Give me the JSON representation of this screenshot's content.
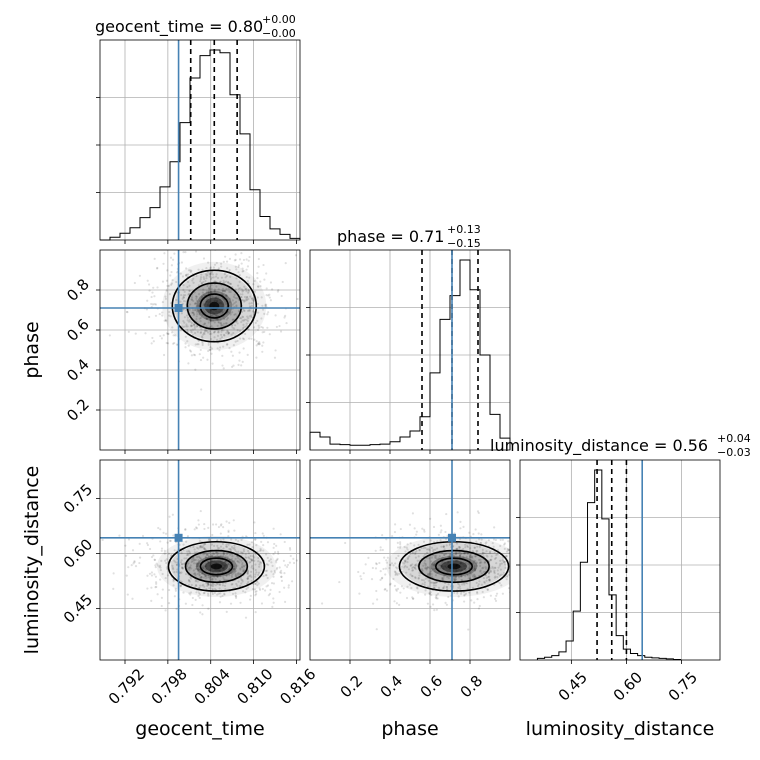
{
  "chart_data": {
    "type": "corner",
    "parameters": [
      "geocent_time",
      "phase",
      "luminosity_distance"
    ],
    "truths": {
      "geocent_time": 0.7995,
      "phase": 0.71,
      "luminosity_distance": 0.643
    },
    "truth_color": "#4682b4",
    "axes": {
      "geocent_time": {
        "range": [
          0.7885,
          0.8165
        ],
        "ticks": [
          0.792,
          0.798,
          0.804,
          0.81,
          0.816
        ],
        "tick_labels": [
          "0.792",
          "0.798",
          "0.804",
          "0.810",
          "0.816"
        ]
      },
      "phase": {
        "range": [
          0.0,
          1.0
        ],
        "ticks": [
          0.2,
          0.4,
          0.6,
          0.8
        ],
        "tick_labels": [
          "0.2",
          "0.4",
          "0.6",
          "0.8"
        ]
      },
      "luminosity_distance": {
        "range": [
          0.31,
          0.855
        ],
        "ticks": [
          0.45,
          0.6,
          0.75
        ],
        "tick_labels": [
          "0.45",
          "0.60",
          "0.75"
        ]
      }
    },
    "titles": {
      "geocent_time": {
        "main": "geocent_time = 0.80",
        "plus": "+0.00",
        "minus": "−0.00"
      },
      "phase": {
        "main": "phase = 0.71",
        "plus": "+0.13",
        "minus": "−0.15"
      },
      "luminosity_distance": {
        "main": "luminosity_distance = 0.56",
        "plus": "+0.04",
        "minus": "−0.03"
      }
    },
    "quantiles": {
      "geocent_time": [
        0.8012,
        0.8045,
        0.8077
      ],
      "phase": [
        0.56,
        0.71,
        0.84
      ],
      "luminosity_distance": [
        0.52,
        0.56,
        0.6
      ]
    },
    "histograms": {
      "geocent_time": {
        "edges_start": 0.7885,
        "bin_width": 0.0014,
        "counts": [
          0.0,
          0.5,
          1.2,
          2.2,
          4.0,
          5.8,
          9.5,
          14.0,
          21.0,
          29.0,
          33.0,
          34.0,
          33.5,
          26.0,
          19.0,
          9.0,
          4.2,
          2.0,
          1.0,
          0.3
        ]
      },
      "phase": {
        "edges_start": 0.0,
        "bin_width": 0.05,
        "counts": [
          3.0,
          2.2,
          1.0,
          0.9,
          0.8,
          0.8,
          0.9,
          1.0,
          1.4,
          2.2,
          3.2,
          5.6,
          13.0,
          22.0,
          26.0,
          32.0,
          27.0,
          16.0,
          6.0,
          2.0
        ]
      },
      "luminosity_distance": {
        "edges_start": 0.3575,
        "bin_width": 0.0195,
        "counts": [
          0.3,
          0.5,
          0.8,
          1.5,
          3.5,
          9.0,
          18.0,
          29.0,
          35.0,
          26.0,
          12.0,
          4.5,
          2.0,
          1.2,
          0.8,
          0.5,
          0.4,
          0.3,
          0.2,
          0.1
        ]
      }
    },
    "density": {
      "phase_vs_geocent_time": {
        "x_center": 0.8045,
        "y_center": 0.72,
        "x_sigma": 0.0028,
        "y_sigma": 0.085
      },
      "luminosity_distance_vs_geocent_time": {
        "x_center": 0.8048,
        "y_center": 0.565,
        "x_sigma": 0.0032,
        "y_sigma": 0.032
      },
      "luminosity_distance_vs_phase": {
        "x_center": 0.72,
        "y_center": 0.565,
        "x_sigma": 0.13,
        "y_sigma": 0.032
      }
    }
  }
}
